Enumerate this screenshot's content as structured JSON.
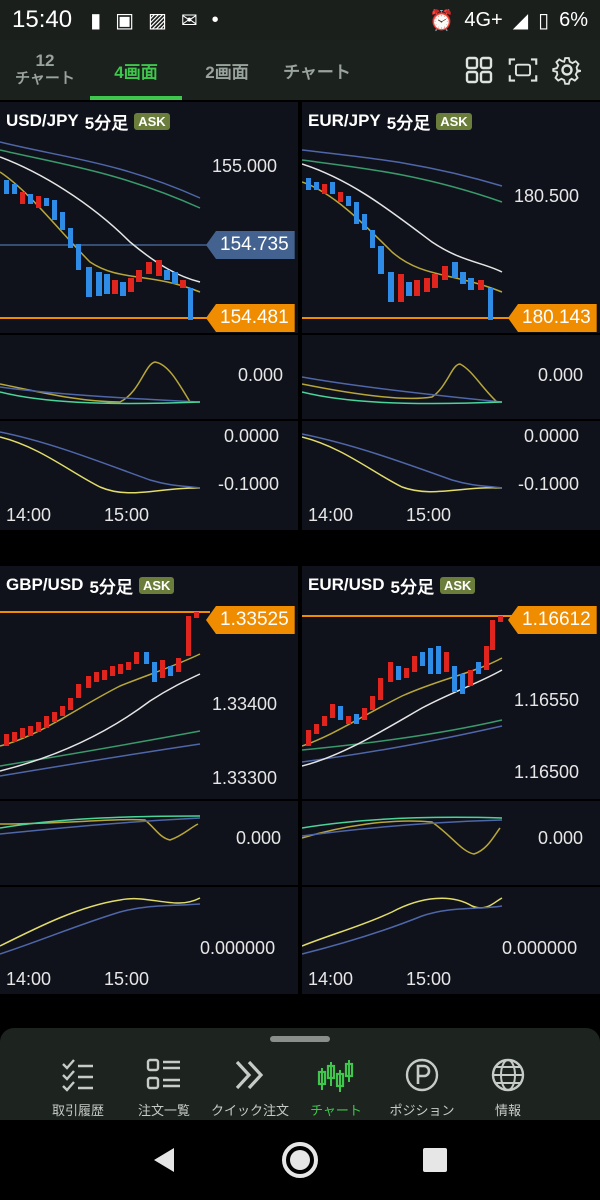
{
  "status_bar": {
    "time": "15:40",
    "network": "4G+",
    "battery": "6%"
  },
  "top_tabs": {
    "tab12_num": "12",
    "tab12_label": "チャート",
    "tab4": "4画面",
    "tab2": "2画面",
    "tab_chart": "チャート"
  },
  "panels": [
    {
      "pair": "USD/JPY",
      "tf": "5分足",
      "ask": "ASK",
      "price_labels": [
        "155.000"
      ],
      "blue_tag": "154.735",
      "orange_tag": "154.481",
      "osc1_label": "0.000",
      "osc2_labels": [
        "0.0000",
        "-0.1000"
      ],
      "times": [
        "14:00",
        "15:00"
      ]
    },
    {
      "pair": "EUR/JPY",
      "tf": "5分足",
      "ask": "ASK",
      "price_labels": [
        "180.500"
      ],
      "orange_tag": "180.143",
      "osc1_label": "0.000",
      "osc2_labels": [
        "0.0000",
        "-0.1000"
      ],
      "times": [
        "14:00",
        "15:00"
      ]
    },
    {
      "pair": "GBP/USD",
      "tf": "5分足",
      "ask": "ASK",
      "price_labels": [
        "1.33400",
        "1.33300"
      ],
      "orange_tag": "1.33525",
      "osc1_label": "0.000",
      "osc2_labels": [
        "0.000000"
      ],
      "times": [
        "14:00",
        "15:00"
      ]
    },
    {
      "pair": "EUR/USD",
      "tf": "5分足",
      "ask": "ASK",
      "price_labels": [
        "1.16550",
        "1.16500"
      ],
      "orange_tag": "1.16612",
      "osc1_label": "0.000",
      "osc2_labels": [
        "0.000000"
      ],
      "times": [
        "14:00",
        "15:00"
      ]
    }
  ],
  "bottom_nav": [
    {
      "label": "取引履歴",
      "icon": "checklist-icon"
    },
    {
      "label": "注文一覧",
      "icon": "list-icon"
    },
    {
      "label": "クイック注文",
      "icon": "double-chevron-icon"
    },
    {
      "label": "チャート",
      "icon": "candlestick-icon"
    },
    {
      "label": "ポジション",
      "icon": "p-circle-icon"
    },
    {
      "label": "情報",
      "icon": "globe-icon"
    }
  ],
  "colors": {
    "accent": "#3ec64d",
    "orange": "#f08c00",
    "up": "#e0251f",
    "down": "#2e8ce6"
  }
}
